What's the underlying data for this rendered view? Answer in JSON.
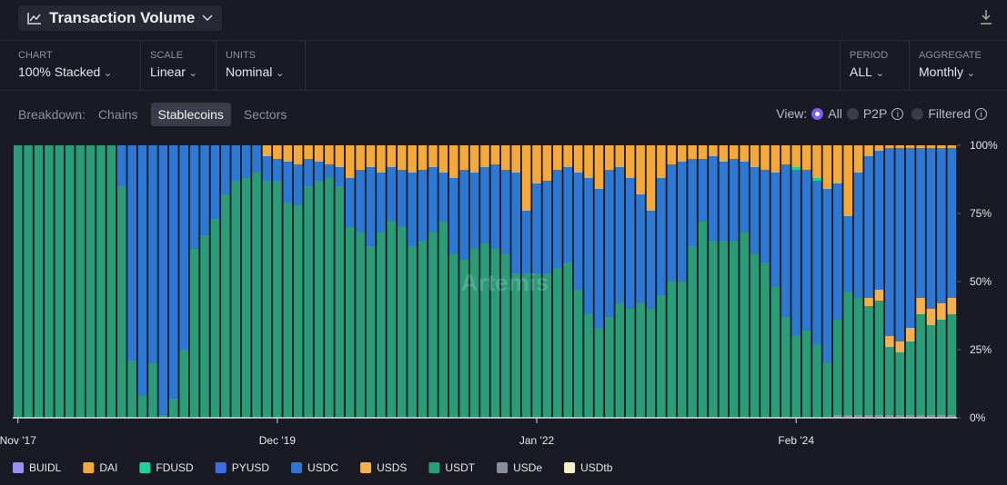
{
  "header": {
    "title": "Transaction Volume"
  },
  "controls": [
    {
      "label": "CHART",
      "value": "100% Stacked"
    },
    {
      "label": "SCALE",
      "value": "Linear"
    },
    {
      "label": "UNITS",
      "value": "Nominal"
    },
    {
      "label": "PERIOD",
      "value": "ALL"
    },
    {
      "label": "AGGREGATE",
      "value": "Monthly"
    }
  ],
  "breakdown": {
    "label": "Breakdown:",
    "options": [
      "Chains",
      "Stablecoins",
      "Sectors"
    ]
  },
  "view": {
    "label": "View:",
    "options": [
      "All",
      "P2P",
      "Filtered"
    ]
  },
  "watermark": "Artemis",
  "chart_data": {
    "type": "stacked_bar_100",
    "categories": [
      "Nov '17",
      null,
      null,
      null,
      null,
      null,
      null,
      null,
      null,
      null,
      null,
      null,
      null,
      null,
      null,
      null,
      null,
      null,
      null,
      null,
      null,
      null,
      null,
      null,
      null,
      "Dec '19",
      null,
      null,
      null,
      null,
      null,
      null,
      null,
      null,
      null,
      null,
      null,
      null,
      null,
      null,
      null,
      null,
      null,
      null,
      null,
      null,
      null,
      null,
      null,
      null,
      "Jan '22",
      null,
      null,
      null,
      null,
      null,
      null,
      null,
      null,
      null,
      null,
      null,
      null,
      null,
      null,
      null,
      null,
      null,
      null,
      null,
      null,
      null,
      null,
      null,
      null,
      "Feb '24",
      null,
      null,
      null,
      null,
      null,
      null,
      null,
      null,
      null,
      null,
      null,
      null,
      null,
      null,
      null
    ],
    "ylim": [
      0,
      100
    ],
    "yticks": [
      {
        "value": 0,
        "label": "0%"
      },
      {
        "value": 25,
        "label": "25%"
      },
      {
        "value": 50,
        "label": "50%"
      },
      {
        "value": 75,
        "label": "75%"
      },
      {
        "value": 100,
        "label": "100%"
      }
    ],
    "series": [
      {
        "name": "BUIDL",
        "color": "#9d8ff2",
        "values": [
          0,
          0,
          0,
          0,
          0,
          0,
          0,
          0,
          0,
          0,
          0,
          0,
          0,
          0,
          0,
          0,
          0,
          0,
          0,
          0,
          0,
          0,
          0,
          0,
          0,
          0,
          0,
          0,
          0,
          0,
          0,
          0,
          0,
          0,
          0,
          0,
          0,
          0,
          0,
          0,
          0,
          0,
          0,
          0,
          0,
          0,
          0,
          0,
          0,
          0,
          0,
          0,
          0,
          0,
          0,
          0,
          0,
          0,
          0,
          0,
          0,
          0,
          0,
          0,
          0,
          0,
          0,
          0,
          0,
          0,
          0,
          0,
          0,
          0,
          0,
          0,
          0,
          0,
          0,
          0,
          0,
          0,
          0,
          0,
          0,
          0,
          0,
          0,
          0,
          0,
          0
        ]
      },
      {
        "name": "DAI",
        "color": "#f5a93a",
        "values": [
          0,
          0,
          0,
          0,
          0,
          0,
          0,
          0,
          0,
          0,
          0,
          0,
          0,
          0,
          0,
          0,
          0,
          0,
          0,
          0,
          0,
          0,
          0,
          0,
          4,
          5,
          6,
          7,
          5,
          6,
          7,
          8,
          12,
          9,
          8,
          10,
          8,
          9,
          10,
          9,
          8,
          10,
          12,
          9,
          10,
          8,
          7,
          9,
          10,
          24,
          14,
          13,
          9,
          8,
          10,
          12,
          16,
          9,
          8,
          12,
          18,
          24,
          12,
          7,
          6,
          5,
          5,
          4,
          6,
          5,
          6,
          8,
          9,
          10,
          7,
          8,
          9,
          12,
          16,
          14,
          26,
          10,
          4,
          2,
          1,
          1,
          1,
          1,
          1,
          1,
          1
        ]
      },
      {
        "name": "FDUSD",
        "color": "#1ed39a",
        "values": [
          0,
          0,
          0,
          0,
          0,
          0,
          0,
          0,
          0,
          0,
          0,
          0,
          0,
          0,
          0,
          0,
          0,
          0,
          0,
          0,
          0,
          0,
          0,
          0,
          0,
          0,
          0,
          0,
          0,
          0,
          0,
          0,
          0,
          0,
          0,
          0,
          0,
          0,
          0,
          0,
          0,
          0,
          0,
          0,
          0,
          0,
          0,
          0,
          0,
          0,
          0,
          0,
          0,
          0,
          0,
          0,
          0,
          0,
          0,
          0,
          0,
          0,
          0,
          0,
          0,
          0,
          0,
          0,
          0,
          0,
          0,
          0,
          0,
          0,
          0,
          1,
          0,
          1,
          0,
          0,
          0,
          0,
          0,
          0,
          0,
          0,
          0,
          0,
          0,
          0,
          0
        ]
      },
      {
        "name": "PYUSD",
        "color": "#3b6ee6",
        "values": [
          0,
          0,
          0,
          0,
          0,
          0,
          0,
          0,
          0,
          0,
          0,
          0,
          0,
          0,
          0,
          0,
          0,
          0,
          0,
          0,
          0,
          0,
          0,
          0,
          0,
          0,
          0,
          0,
          0,
          0,
          0,
          0,
          0,
          0,
          0,
          0,
          0,
          0,
          0,
          0,
          0,
          0,
          0,
          0,
          0,
          0,
          0,
          0,
          0,
          0,
          0,
          0,
          0,
          0,
          0,
          0,
          0,
          0,
          0,
          0,
          0,
          0,
          0,
          0,
          0,
          0,
          0,
          0,
          0,
          0,
          0,
          0,
          0,
          0,
          0,
          0,
          0,
          0,
          0,
          0,
          0,
          0,
          0,
          0,
          0,
          0,
          0,
          0,
          0,
          0,
          0
        ]
      },
      {
        "name": "USDC",
        "color": "#2d78d2",
        "values": [
          0,
          0,
          0,
          0,
          0,
          0,
          0,
          0,
          0,
          0,
          15,
          79,
          92,
          80,
          99,
          93,
          75,
          38,
          33,
          27,
          18,
          13,
          12,
          10,
          9,
          8,
          15,
          15,
          10,
          7,
          5,
          7,
          18,
          23,
          29,
          22,
          20,
          21,
          27,
          26,
          24,
          18,
          28,
          33,
          28,
          28,
          31,
          31,
          37,
          23,
          33,
          34,
          36,
          35,
          43,
          50,
          51,
          54,
          50,
          48,
          40,
          36,
          43,
          43,
          44,
          32,
          23,
          31,
          29,
          30,
          26,
          32,
          34,
          42,
          56,
          61,
          59,
          60,
          64,
          50,
          28,
          46,
          52,
          51,
          69,
          71,
          66,
          55,
          59,
          57,
          55
        ]
      },
      {
        "name": "USDS",
        "color": "#f4b04e",
        "values": [
          0,
          0,
          0,
          0,
          0,
          0,
          0,
          0,
          0,
          0,
          0,
          0,
          0,
          0,
          0,
          0,
          0,
          0,
          0,
          0,
          0,
          0,
          0,
          0,
          0,
          0,
          0,
          0,
          0,
          0,
          0,
          0,
          0,
          0,
          0,
          0,
          0,
          0,
          0,
          0,
          0,
          0,
          0,
          0,
          0,
          0,
          0,
          0,
          0,
          0,
          0,
          0,
          0,
          0,
          0,
          0,
          0,
          0,
          0,
          0,
          0,
          0,
          0,
          0,
          0,
          0,
          0,
          0,
          0,
          0,
          0,
          0,
          0,
          0,
          0,
          0,
          0,
          0,
          0,
          0,
          0,
          0,
          3,
          4,
          4,
          4,
          5,
          6,
          6,
          6,
          6
        ]
      },
      {
        "name": "USDT",
        "color": "#2a9d77",
        "values": [
          100,
          100,
          100,
          100,
          100,
          100,
          100,
          100,
          100,
          100,
          85,
          21,
          8,
          20,
          1,
          7,
          25,
          62,
          67,
          73,
          82,
          87,
          88,
          90,
          87,
          87,
          79,
          78,
          85,
          87,
          88,
          85,
          70,
          68,
          63,
          68,
          72,
          70,
          63,
          65,
          68,
          72,
          60,
          58,
          62,
          64,
          62,
          60,
          53,
          53,
          53,
          53,
          55,
          57,
          47,
          38,
          33,
          37,
          42,
          40,
          42,
          40,
          45,
          50,
          50,
          63,
          72,
          65,
          65,
          65,
          68,
          60,
          57,
          48,
          37,
          30,
          32,
          27,
          20,
          35,
          45,
          43,
          40,
          42,
          25,
          23,
          27,
          37,
          33,
          35,
          37
        ]
      },
      {
        "name": "USDe",
        "color": "#8a8e9c",
        "values": [
          0,
          0,
          0,
          0,
          0,
          0,
          0,
          0,
          0,
          0,
          0,
          0,
          0,
          0,
          0,
          0,
          0,
          0,
          0,
          0,
          0,
          0,
          0,
          0,
          0,
          0,
          0,
          0,
          0,
          0,
          0,
          0,
          0,
          0,
          0,
          0,
          0,
          0,
          0,
          0,
          0,
          0,
          0,
          0,
          0,
          0,
          0,
          0,
          0,
          0,
          0,
          0,
          0,
          0,
          0,
          0,
          0,
          0,
          0,
          0,
          0,
          0,
          0,
          0,
          0,
          0,
          0,
          0,
          0,
          0,
          0,
          0,
          0,
          0,
          0,
          0,
          0,
          0,
          0,
          1,
          1,
          1,
          1,
          1,
          1,
          1,
          1,
          1,
          1,
          1,
          1
        ]
      },
      {
        "name": "USDtb",
        "color": "#f5f0c8",
        "values": [
          0,
          0,
          0,
          0,
          0,
          0,
          0,
          0,
          0,
          0,
          0,
          0,
          0,
          0,
          0,
          0,
          0,
          0,
          0,
          0,
          0,
          0,
          0,
          0,
          0,
          0,
          0,
          0,
          0,
          0,
          0,
          0,
          0,
          0,
          0,
          0,
          0,
          0,
          0,
          0,
          0,
          0,
          0,
          0,
          0,
          0,
          0,
          0,
          0,
          0,
          0,
          0,
          0,
          0,
          0,
          0,
          0,
          0,
          0,
          0,
          0,
          0,
          0,
          0,
          0,
          0,
          0,
          0,
          0,
          0,
          0,
          0,
          0,
          0,
          0,
          0,
          0,
          0,
          0,
          0,
          0,
          0,
          0,
          0,
          0,
          0,
          0,
          0,
          0,
          0,
          0
        ]
      }
    ]
  }
}
